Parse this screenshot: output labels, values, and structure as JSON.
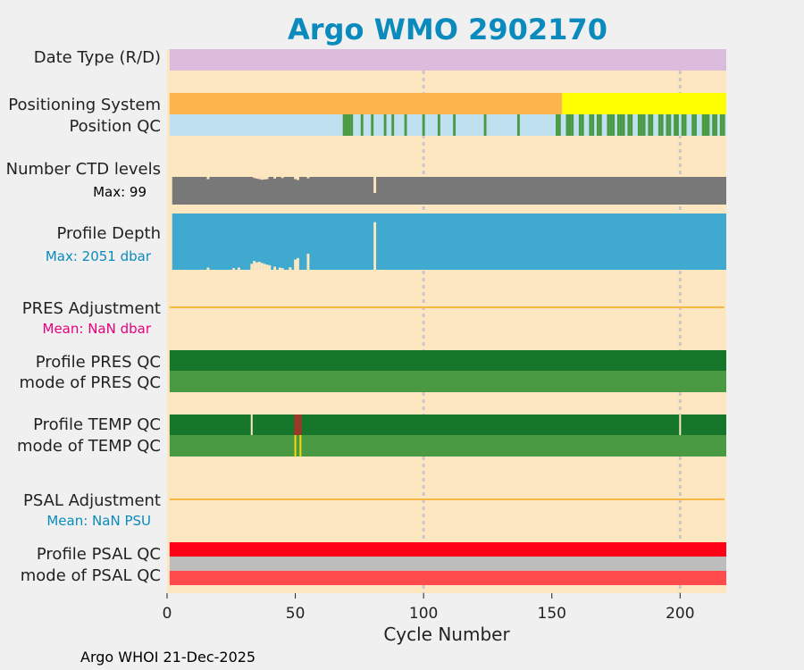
{
  "title": "Argo WMO 2902170",
  "footer": "Argo WHOI 21-Dec-2025",
  "colors": {
    "background": "#fde7c0",
    "date_type": "#dbbcdc",
    "positioning_gps": "#fdb44b",
    "positioning_other": "#ffff00",
    "position_qc_base": "#bfe0ee",
    "qc_good": "#4a9a44",
    "qc_profile_A": "#16772b",
    "ctd": "#787878",
    "depth": "#40a9cf",
    "adjustment_line": "#f5b942",
    "temp_bad": "#d21f26",
    "temp_mode_flag": "#ffd700",
    "psal_profile": "#ff0017",
    "psal_gray": "#bdbdbd",
    "psal_mode": "#ff4b4b",
    "grid": "#c8c8c8",
    "title": "#0b8bbd",
    "mean_pres": "#e6007e",
    "mean_psal": "#0b8bbd"
  },
  "chart_data": {
    "type": "bar",
    "title": "Argo WMO 2902170",
    "xlabel": "Cycle Number",
    "xlim": [
      0,
      218
    ],
    "xticks": [
      0,
      50,
      100,
      150,
      200
    ],
    "grid_x": [
      100,
      200
    ],
    "rows": {
      "date_type": {
        "label": "Date Type (R/D)"
      },
      "positioning": {
        "label": "Positioning System",
        "gps_until_cycle": 154
      },
      "position_qc": {
        "label": "Position QC",
        "flag_cycles": [
          69,
          70,
          71,
          72,
          76,
          80,
          85,
          88,
          93,
          100,
          106,
          112,
          124,
          137,
          152,
          153,
          156,
          157,
          158,
          161,
          162,
          165,
          166,
          168,
          169,
          172,
          173,
          174,
          176,
          177,
          178,
          180,
          181,
          184,
          185,
          186,
          188,
          189,
          192,
          193,
          195,
          196,
          198,
          199,
          201,
          202,
          205,
          206,
          209,
          210,
          211,
          213,
          214,
          216,
          217
        ]
      },
      "ctd_levels": {
        "label": "Number CTD levels",
        "max_label": "Max: 99",
        "max": 99,
        "base_value": 95,
        "dips": [
          [
            16,
            88
          ],
          [
            34,
            92
          ],
          [
            35,
            90
          ],
          [
            36,
            88
          ],
          [
            37,
            86
          ],
          [
            38,
            87
          ],
          [
            39,
            88
          ],
          [
            42,
            90
          ],
          [
            45,
            92
          ],
          [
            50,
            88
          ],
          [
            51,
            85
          ],
          [
            55,
            91
          ],
          [
            81,
            40
          ]
        ]
      },
      "profile_depth": {
        "label": "Profile Depth",
        "max_label": "Max: 2051 dbar",
        "max": 2051,
        "base_value": 1950,
        "dips": [
          [
            16,
            1880
          ],
          [
            26,
            1900
          ],
          [
            28,
            1880
          ],
          [
            33,
            1750
          ],
          [
            34,
            1650
          ],
          [
            35,
            1700
          ],
          [
            36,
            1680
          ],
          [
            37,
            1720
          ],
          [
            38,
            1750
          ],
          [
            39,
            1780
          ],
          [
            40,
            1800
          ],
          [
            42,
            1850
          ],
          [
            44,
            1880
          ],
          [
            45,
            1900
          ],
          [
            48,
            1870
          ],
          [
            50,
            1600
          ],
          [
            51,
            1550
          ],
          [
            55,
            1400
          ],
          [
            81,
            300
          ]
        ]
      },
      "pres_adjustment": {
        "label": "PRES Adjustment",
        "mean_label": "Mean:  NaN dbar"
      },
      "profile_pres_qc": {
        "label": "Profile PRES QC"
      },
      "mode_pres_qc": {
        "label": "mode of PRES QC"
      },
      "profile_temp_qc": {
        "label": "Profile TEMP QC",
        "gap_cycles": [
          33,
          200
        ],
        "bad_cycles": [
          50,
          51,
          52
        ]
      },
      "mode_temp_qc": {
        "label": "mode of TEMP QC",
        "flag_cycles": [
          50,
          52
        ]
      },
      "psal_adjustment": {
        "label": "PSAL Adjustment",
        "mean_label": "Mean:  NaN PSU"
      },
      "profile_psal_qc": {
        "label": "Profile PSAL QC"
      },
      "mode_psal_qc": {
        "label": "mode of PSAL QC"
      }
    }
  }
}
